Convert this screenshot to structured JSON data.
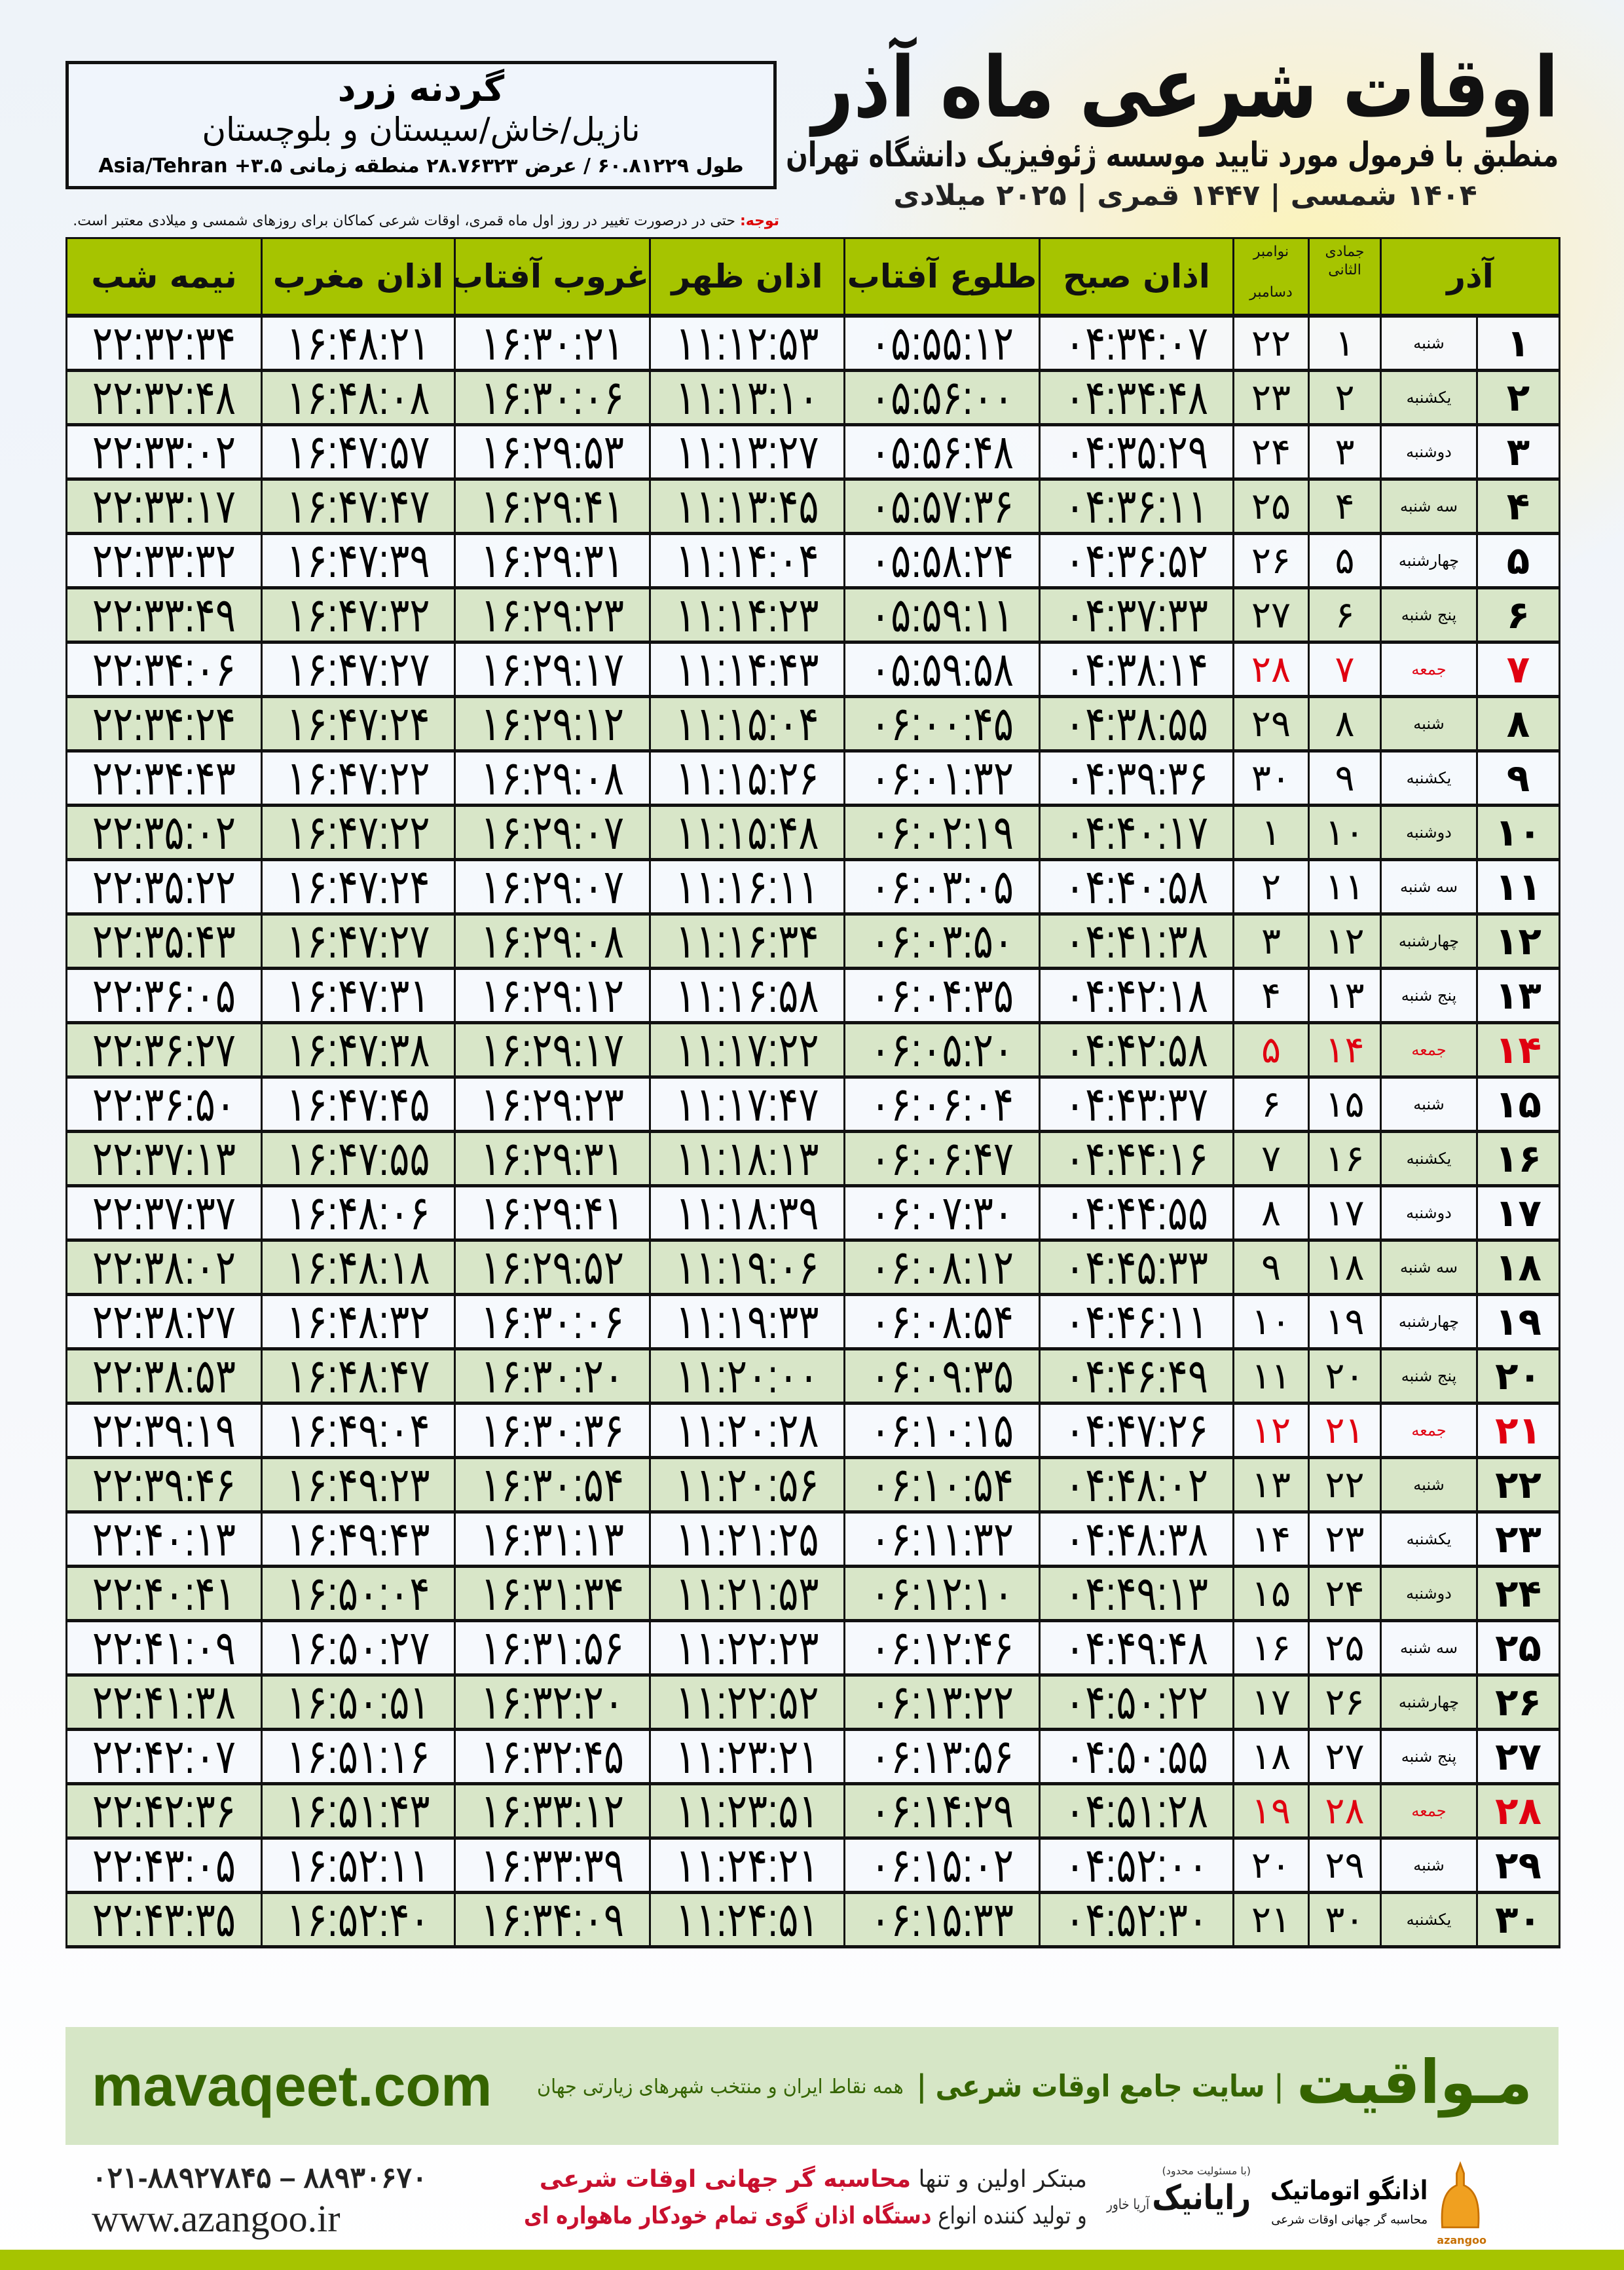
{
  "header": {
    "title": "اوقات شرعی ماه آذر",
    "subtitle": "منطبق با فرمول مورد تایید موسسه ژئوفیزیک دانشگاه تهران",
    "dateline": "۱۴۰۴ شمسی | ۱۴۴۷ قمری | ۲۰۲۵ میلادی"
  },
  "location": {
    "name": "گردنه زرد",
    "region": "نازیل/خاش/سیستان و بلوچستان",
    "coords": "طول ۶۰.۸۱۲۲۹ / عرض ۲۸.۷۶۳۲۳ منطقه زمانی ۳.۵+ Asia/Tehran"
  },
  "note": {
    "label": "توجه:",
    "text": " حتی در درصورت تغییر در روز اول ماه قمری، اوقات شرعی کماکان برای روزهای شمسی و میلادی معتبر است."
  },
  "table": {
    "headers": {
      "day": "آذر",
      "qamari": "جمادی الثانی",
      "miladi_top": "نوامبر",
      "miladi_bottom": "دسامبر",
      "fajr": "اذان صبح",
      "sunrise": "طلوع آفتاب",
      "dhuhr": "اذان ظهر",
      "sunset": "غروب آفتاب",
      "maghrib": "اذان مغرب",
      "midnight": "نیمه شب"
    },
    "holiday_color": "#e00010",
    "header_color": "#a6c400",
    "rows": [
      {
        "day": "۱",
        "weekday": "شنبه",
        "qamari": "۱",
        "miladi": "۲۲",
        "fajr": "۰۴:۳۴:۰۷",
        "sunrise": "۰۵:۵۵:۱۲",
        "dhuhr": "۱۱:۱۲:۵۳",
        "sunset": "۱۶:۳۰:۲۱",
        "maghrib": "۱۶:۴۸:۲۱",
        "midnight": "۲۲:۳۲:۳۴",
        "holiday": false
      },
      {
        "day": "۲",
        "weekday": "یکشنبه",
        "qamari": "۲",
        "miladi": "۲۳",
        "fajr": "۰۴:۳۴:۴۸",
        "sunrise": "۰۵:۵۶:۰۰",
        "dhuhr": "۱۱:۱۳:۱۰",
        "sunset": "۱۶:۳۰:۰۶",
        "maghrib": "۱۶:۴۸:۰۸",
        "midnight": "۲۲:۳۲:۴۸",
        "holiday": false
      },
      {
        "day": "۳",
        "weekday": "دوشنبه",
        "qamari": "۳",
        "miladi": "۲۴",
        "fajr": "۰۴:۳۵:۲۹",
        "sunrise": "۰۵:۵۶:۴۸",
        "dhuhr": "۱۱:۱۳:۲۷",
        "sunset": "۱۶:۲۹:۵۳",
        "maghrib": "۱۶:۴۷:۵۷",
        "midnight": "۲۲:۳۳:۰۲",
        "holiday": false
      },
      {
        "day": "۴",
        "weekday": "سه شنبه",
        "qamari": "۴",
        "miladi": "۲۵",
        "fajr": "۰۴:۳۶:۱۱",
        "sunrise": "۰۵:۵۷:۳۶",
        "dhuhr": "۱۱:۱۳:۴۵",
        "sunset": "۱۶:۲۹:۴۱",
        "maghrib": "۱۶:۴۷:۴۷",
        "midnight": "۲۲:۳۳:۱۷",
        "holiday": false
      },
      {
        "day": "۵",
        "weekday": "چهارشنبه",
        "qamari": "۵",
        "miladi": "۲۶",
        "fajr": "۰۴:۳۶:۵۲",
        "sunrise": "۰۵:۵۸:۲۴",
        "dhuhr": "۱۱:۱۴:۰۴",
        "sunset": "۱۶:۲۹:۳۱",
        "maghrib": "۱۶:۴۷:۳۹",
        "midnight": "۲۲:۳۳:۳۲",
        "holiday": false
      },
      {
        "day": "۶",
        "weekday": "پنج شنبه",
        "qamari": "۶",
        "miladi": "۲۷",
        "fajr": "۰۴:۳۷:۳۳",
        "sunrise": "۰۵:۵۹:۱۱",
        "dhuhr": "۱۱:۱۴:۲۳",
        "sunset": "۱۶:۲۹:۲۳",
        "maghrib": "۱۶:۴۷:۳۲",
        "midnight": "۲۲:۳۳:۴۹",
        "holiday": false
      },
      {
        "day": "۷",
        "weekday": "جمعه",
        "qamari": "۷",
        "miladi": "۲۸",
        "fajr": "۰۴:۳۸:۱۴",
        "sunrise": "۰۵:۵۹:۵۸",
        "dhuhr": "۱۱:۱۴:۴۳",
        "sunset": "۱۶:۲۹:۱۷",
        "maghrib": "۱۶:۴۷:۲۷",
        "midnight": "۲۲:۳۴:۰۶",
        "holiday": true
      },
      {
        "day": "۸",
        "weekday": "شنبه",
        "qamari": "۸",
        "miladi": "۲۹",
        "fajr": "۰۴:۳۸:۵۵",
        "sunrise": "۰۶:۰۰:۴۵",
        "dhuhr": "۱۱:۱۵:۰۴",
        "sunset": "۱۶:۲۹:۱۲",
        "maghrib": "۱۶:۴۷:۲۴",
        "midnight": "۲۲:۳۴:۲۴",
        "holiday": false
      },
      {
        "day": "۹",
        "weekday": "یکشنبه",
        "qamari": "۹",
        "miladi": "۳۰",
        "fajr": "۰۴:۳۹:۳۶",
        "sunrise": "۰۶:۰۱:۳۲",
        "dhuhr": "۱۱:۱۵:۲۶",
        "sunset": "۱۶:۲۹:۰۸",
        "maghrib": "۱۶:۴۷:۲۲",
        "midnight": "۲۲:۳۴:۴۳",
        "holiday": false
      },
      {
        "day": "۱۰",
        "weekday": "دوشنبه",
        "qamari": "۱۰",
        "miladi": "۱",
        "fajr": "۰۴:۴۰:۱۷",
        "sunrise": "۰۶:۰۲:۱۹",
        "dhuhr": "۱۱:۱۵:۴۸",
        "sunset": "۱۶:۲۹:۰۷",
        "maghrib": "۱۶:۴۷:۲۲",
        "midnight": "۲۲:۳۵:۰۲",
        "holiday": false
      },
      {
        "day": "۱۱",
        "weekday": "سه شنبه",
        "qamari": "۱۱",
        "miladi": "۲",
        "fajr": "۰۴:۴۰:۵۸",
        "sunrise": "۰۶:۰۳:۰۵",
        "dhuhr": "۱۱:۱۶:۱۱",
        "sunset": "۱۶:۲۹:۰۷",
        "maghrib": "۱۶:۴۷:۲۴",
        "midnight": "۲۲:۳۵:۲۲",
        "holiday": false
      },
      {
        "day": "۱۲",
        "weekday": "چهارشنبه",
        "qamari": "۱۲",
        "miladi": "۳",
        "fajr": "۰۴:۴۱:۳۸",
        "sunrise": "۰۶:۰۳:۵۰",
        "dhuhr": "۱۱:۱۶:۳۴",
        "sunset": "۱۶:۲۹:۰۸",
        "maghrib": "۱۶:۴۷:۲۷",
        "midnight": "۲۲:۳۵:۴۳",
        "holiday": false
      },
      {
        "day": "۱۳",
        "weekday": "پنج شنبه",
        "qamari": "۱۳",
        "miladi": "۴",
        "fajr": "۰۴:۴۲:۱۸",
        "sunrise": "۰۶:۰۴:۳۵",
        "dhuhr": "۱۱:۱۶:۵۸",
        "sunset": "۱۶:۲۹:۱۲",
        "maghrib": "۱۶:۴۷:۳۱",
        "midnight": "۲۲:۳۶:۰۵",
        "holiday": false
      },
      {
        "day": "۱۴",
        "weekday": "جمعه",
        "qamari": "۱۴",
        "miladi": "۵",
        "fajr": "۰۴:۴۲:۵۸",
        "sunrise": "۰۶:۰۵:۲۰",
        "dhuhr": "۱۱:۱۷:۲۲",
        "sunset": "۱۶:۲۹:۱۷",
        "maghrib": "۱۶:۴۷:۳۸",
        "midnight": "۲۲:۳۶:۲۷",
        "holiday": true
      },
      {
        "day": "۱۵",
        "weekday": "شنبه",
        "qamari": "۱۵",
        "miladi": "۶",
        "fajr": "۰۴:۴۳:۳۷",
        "sunrise": "۰۶:۰۶:۰۴",
        "dhuhr": "۱۱:۱۷:۴۷",
        "sunset": "۱۶:۲۹:۲۳",
        "maghrib": "۱۶:۴۷:۴۵",
        "midnight": "۲۲:۳۶:۵۰",
        "holiday": false
      },
      {
        "day": "۱۶",
        "weekday": "یکشنبه",
        "qamari": "۱۶",
        "miladi": "۷",
        "fajr": "۰۴:۴۴:۱۶",
        "sunrise": "۰۶:۰۶:۴۷",
        "dhuhr": "۱۱:۱۸:۱۳",
        "sunset": "۱۶:۲۹:۳۱",
        "maghrib": "۱۶:۴۷:۵۵",
        "midnight": "۲۲:۳۷:۱۳",
        "holiday": false
      },
      {
        "day": "۱۷",
        "weekday": "دوشنبه",
        "qamari": "۱۷",
        "miladi": "۸",
        "fajr": "۰۴:۴۴:۵۵",
        "sunrise": "۰۶:۰۷:۳۰",
        "dhuhr": "۱۱:۱۸:۳۹",
        "sunset": "۱۶:۲۹:۴۱",
        "maghrib": "۱۶:۴۸:۰۶",
        "midnight": "۲۲:۳۷:۳۷",
        "holiday": false
      },
      {
        "day": "۱۸",
        "weekday": "سه شنبه",
        "qamari": "۱۸",
        "miladi": "۹",
        "fajr": "۰۴:۴۵:۳۳",
        "sunrise": "۰۶:۰۸:۱۲",
        "dhuhr": "۱۱:۱۹:۰۶",
        "sunset": "۱۶:۲۹:۵۲",
        "maghrib": "۱۶:۴۸:۱۸",
        "midnight": "۲۲:۳۸:۰۲",
        "holiday": false
      },
      {
        "day": "۱۹",
        "weekday": "چهارشنبه",
        "qamari": "۱۹",
        "miladi": "۱۰",
        "fajr": "۰۴:۴۶:۱۱",
        "sunrise": "۰۶:۰۸:۵۴",
        "dhuhr": "۱۱:۱۹:۳۳",
        "sunset": "۱۶:۳۰:۰۶",
        "maghrib": "۱۶:۴۸:۳۲",
        "midnight": "۲۲:۳۸:۲۷",
        "holiday": false
      },
      {
        "day": "۲۰",
        "weekday": "پنج شنبه",
        "qamari": "۲۰",
        "miladi": "۱۱",
        "fajr": "۰۴:۴۶:۴۹",
        "sunrise": "۰۶:۰۹:۳۵",
        "dhuhr": "۱۱:۲۰:۰۰",
        "sunset": "۱۶:۳۰:۲۰",
        "maghrib": "۱۶:۴۸:۴۷",
        "midnight": "۲۲:۳۸:۵۳",
        "holiday": false
      },
      {
        "day": "۲۱",
        "weekday": "جمعه",
        "qamari": "۲۱",
        "miladi": "۱۲",
        "fajr": "۰۴:۴۷:۲۶",
        "sunrise": "۰۶:۱۰:۱۵",
        "dhuhr": "۱۱:۲۰:۲۸",
        "sunset": "۱۶:۳۰:۳۶",
        "maghrib": "۱۶:۴۹:۰۴",
        "midnight": "۲۲:۳۹:۱۹",
        "holiday": true
      },
      {
        "day": "۲۲",
        "weekday": "شنبه",
        "qamari": "۲۲",
        "miladi": "۱۳",
        "fajr": "۰۴:۴۸:۰۲",
        "sunrise": "۰۶:۱۰:۵۴",
        "dhuhr": "۱۱:۲۰:۵۶",
        "sunset": "۱۶:۳۰:۵۴",
        "maghrib": "۱۶:۴۹:۲۳",
        "midnight": "۲۲:۳۹:۴۶",
        "holiday": false
      },
      {
        "day": "۲۳",
        "weekday": "یکشنبه",
        "qamari": "۲۳",
        "miladi": "۱۴",
        "fajr": "۰۴:۴۸:۳۸",
        "sunrise": "۰۶:۱۱:۳۲",
        "dhuhr": "۱۱:۲۱:۲۵",
        "sunset": "۱۶:۳۱:۱۳",
        "maghrib": "۱۶:۴۹:۴۳",
        "midnight": "۲۲:۴۰:۱۳",
        "holiday": false
      },
      {
        "day": "۲۴",
        "weekday": "دوشنبه",
        "qamari": "۲۴",
        "miladi": "۱۵",
        "fajr": "۰۴:۴۹:۱۳",
        "sunrise": "۰۶:۱۲:۱۰",
        "dhuhr": "۱۱:۲۱:۵۳",
        "sunset": "۱۶:۳۱:۳۴",
        "maghrib": "۱۶:۵۰:۰۴",
        "midnight": "۲۲:۴۰:۴۱",
        "holiday": false
      },
      {
        "day": "۲۵",
        "weekday": "سه شنبه",
        "qamari": "۲۵",
        "miladi": "۱۶",
        "fajr": "۰۴:۴۹:۴۸",
        "sunrise": "۰۶:۱۲:۴۶",
        "dhuhr": "۱۱:۲۲:۲۳",
        "sunset": "۱۶:۳۱:۵۶",
        "maghrib": "۱۶:۵۰:۲۷",
        "midnight": "۲۲:۴۱:۰۹",
        "holiday": false
      },
      {
        "day": "۲۶",
        "weekday": "چهارشنبه",
        "qamari": "۲۶",
        "miladi": "۱۷",
        "fajr": "۰۴:۵۰:۲۲",
        "sunrise": "۰۶:۱۳:۲۲",
        "dhuhr": "۱۱:۲۲:۵۲",
        "sunset": "۱۶:۳۲:۲۰",
        "maghrib": "۱۶:۵۰:۵۱",
        "midnight": "۲۲:۴۱:۳۸",
        "holiday": false
      },
      {
        "day": "۲۷",
        "weekday": "پنج شنبه",
        "qamari": "۲۷",
        "miladi": "۱۸",
        "fajr": "۰۴:۵۰:۵۵",
        "sunrise": "۰۶:۱۳:۵۶",
        "dhuhr": "۱۱:۲۳:۲۱",
        "sunset": "۱۶:۳۲:۴۵",
        "maghrib": "۱۶:۵۱:۱۶",
        "midnight": "۲۲:۴۲:۰۷",
        "holiday": false
      },
      {
        "day": "۲۸",
        "weekday": "جمعه",
        "qamari": "۲۸",
        "miladi": "۱۹",
        "fajr": "۰۴:۵۱:۲۸",
        "sunrise": "۰۶:۱۴:۲۹",
        "dhuhr": "۱۱:۲۳:۵۱",
        "sunset": "۱۶:۳۳:۱۲",
        "maghrib": "۱۶:۵۱:۴۳",
        "midnight": "۲۲:۴۲:۳۶",
        "holiday": true
      },
      {
        "day": "۲۹",
        "weekday": "شنبه",
        "qamari": "۲۹",
        "miladi": "۲۰",
        "fajr": "۰۴:۵۲:۰۰",
        "sunrise": "۰۶:۱۵:۰۲",
        "dhuhr": "۱۱:۲۴:۲۱",
        "sunset": "۱۶:۳۳:۳۹",
        "maghrib": "۱۶:۵۲:۱۱",
        "midnight": "۲۲:۴۳:۰۵",
        "holiday": false
      },
      {
        "day": "۳۰",
        "weekday": "یکشنبه",
        "qamari": "۳۰",
        "miladi": "۲۱",
        "fajr": "۰۴:۵۲:۳۰",
        "sunrise": "۰۶:۱۵:۳۳",
        "dhuhr": "۱۱:۲۴:۵۱",
        "sunset": "۱۶:۳۴:۰۹",
        "maghrib": "۱۶:۵۲:۴۰",
        "midnight": "۲۲:۴۳:۳۵",
        "holiday": false
      }
    ]
  },
  "banner": {
    "site": "mavaqeet.com",
    "brand": "مـواقیت",
    "tagline": "| سایت جامع اوقات شرعی |",
    "subtag": "همه نقاط ایران و منتخب شهرهای زیارتی جهان",
    "color": "#356400"
  },
  "footer": {
    "phones": "۰۲۱-۸۸۹۲۷۸۴۵ – ۸۸۹۳۰۶۷۰",
    "website": "www.azangoo.ir",
    "promo_line1_a": "مبتکر اولین و تنها ",
    "promo_line1_b": "محاسبه گر جهانی اوقات شرعی",
    "promo_line2_a": "و تولید کننده انواع ",
    "promo_line2_b": "دستگاه اذان گوی تمام خودکار ماهواره ای",
    "rayanik_note": "(با مسئولیت محدود)",
    "rayanik_name": "رایانیک",
    "rayanik_sub": "آریا خاور",
    "azangoo_name": "اذانگو اتوماتیک",
    "azangoo_sub": "محاسبه گر جهانی اوقات شرعی",
    "azangoo_latin": "azangoo"
  }
}
